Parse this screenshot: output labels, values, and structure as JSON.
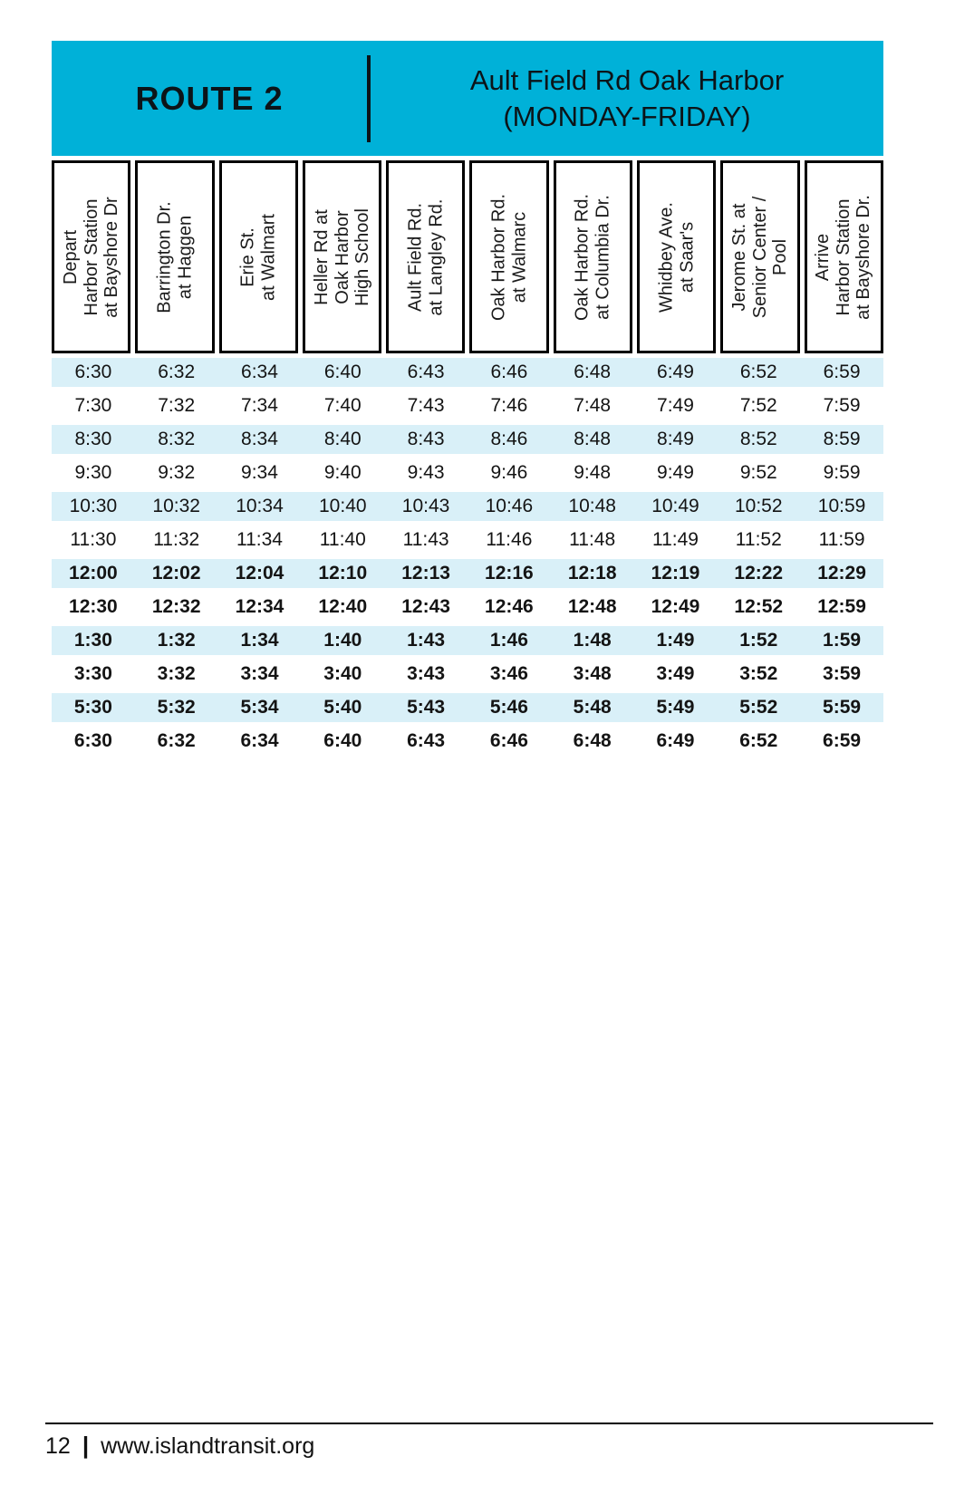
{
  "header": {
    "route_label": "ROUTE 2",
    "title_line1": "Ault Field Rd Oak Harbor",
    "title_line2": "(MONDAY-FRIDAY)"
  },
  "columns": [
    "Depart\nHarbor Station\nat Bayshore Dr",
    "Barrington Dr.\nat Haggen",
    "Erie St.\nat Walmart",
    "Heller Rd at\nOak Harbor\nHigh School",
    "Ault Field Rd.\nat Langley Rd.",
    "Oak Harbor Rd.\nat Walmarc",
    "Oak Harbor Rd.\nat Columbia Dr.",
    "Whidbey Ave.\nat Saar's",
    "Jerome St. at\nSenior Center /\nPool",
    "Arrive\nHarbor Station\nat Bayshore Dr."
  ],
  "schedule": {
    "rows": [
      {
        "times": [
          "6:30",
          "6:32",
          "6:34",
          "6:40",
          "6:43",
          "6:46",
          "6:48",
          "6:49",
          "6:52",
          "6:59"
        ],
        "bold": false,
        "shaded": true
      },
      {
        "times": [
          "7:30",
          "7:32",
          "7:34",
          "7:40",
          "7:43",
          "7:46",
          "7:48",
          "7:49",
          "7:52",
          "7:59"
        ],
        "bold": false,
        "shaded": false
      },
      {
        "times": [
          "8:30",
          "8:32",
          "8:34",
          "8:40",
          "8:43",
          "8:46",
          "8:48",
          "8:49",
          "8:52",
          "8:59"
        ],
        "bold": false,
        "shaded": true
      },
      {
        "times": [
          "9:30",
          "9:32",
          "9:34",
          "9:40",
          "9:43",
          "9:46",
          "9:48",
          "9:49",
          "9:52",
          "9:59"
        ],
        "bold": false,
        "shaded": false
      },
      {
        "times": [
          "10:30",
          "10:32",
          "10:34",
          "10:40",
          "10:43",
          "10:46",
          "10:48",
          "10:49",
          "10:52",
          "10:59"
        ],
        "bold": false,
        "shaded": true
      },
      {
        "times": [
          "11:30",
          "11:32",
          "11:34",
          "11:40",
          "11:43",
          "11:46",
          "11:48",
          "11:49",
          "11:52",
          "11:59"
        ],
        "bold": false,
        "shaded": false
      },
      {
        "times": [
          "12:00",
          "12:02",
          "12:04",
          "12:10",
          "12:13",
          "12:16",
          "12:18",
          "12:19",
          "12:22",
          "12:29"
        ],
        "bold": true,
        "shaded": true
      },
      {
        "times": [
          "12:30",
          "12:32",
          "12:34",
          "12:40",
          "12:43",
          "12:46",
          "12:48",
          "12:49",
          "12:52",
          "12:59"
        ],
        "bold": true,
        "shaded": false
      },
      {
        "times": [
          "1:30",
          "1:32",
          "1:34",
          "1:40",
          "1:43",
          "1:46",
          "1:48",
          "1:49",
          "1:52",
          "1:59"
        ],
        "bold": true,
        "shaded": true
      },
      {
        "times": [
          "3:30",
          "3:32",
          "3:34",
          "3:40",
          "3:43",
          "3:46",
          "3:48",
          "3:49",
          "3:52",
          "3:59"
        ],
        "bold": true,
        "shaded": false
      },
      {
        "times": [
          "5:30",
          "5:32",
          "5:34",
          "5:40",
          "5:43",
          "5:46",
          "5:48",
          "5:49",
          "5:52",
          "5:59"
        ],
        "bold": true,
        "shaded": true
      },
      {
        "times": [
          "6:30",
          "6:32",
          "6:34",
          "6:40",
          "6:43",
          "6:46",
          "6:48",
          "6:49",
          "6:52",
          "6:59"
        ],
        "bold": true,
        "shaded": false
      }
    ]
  },
  "footer": {
    "page_number": "12",
    "separator": "|",
    "website": "www.islandtransit.org"
  },
  "colors": {
    "header_bg": "#00b1d8",
    "row_shade": "#d9f0f8"
  }
}
